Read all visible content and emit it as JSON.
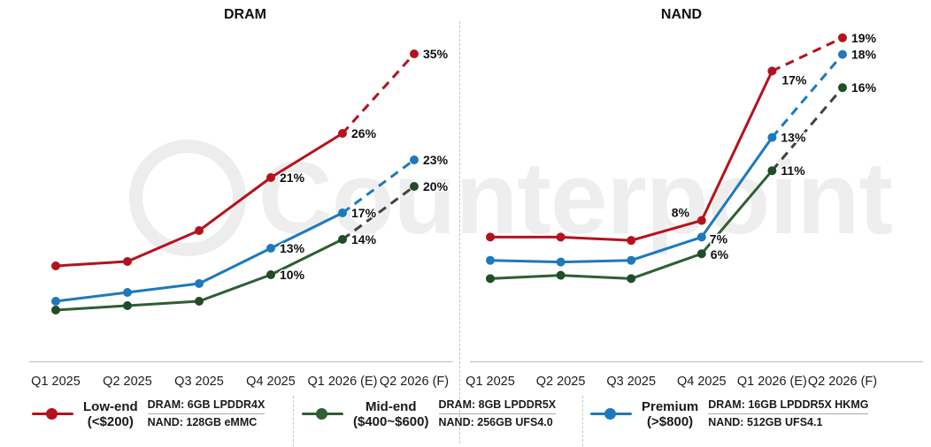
{
  "watermark": {
    "text": "Counterpoint"
  },
  "chart_data": [
    {
      "type": "line",
      "title": "DRAM",
      "unit": "percent",
      "categories": [
        "Q1 2025",
        "Q2 2025",
        "Q3 2025",
        "Q4 2025",
        "Q1 2026 (E)",
        "Q2 2026 (F)"
      ],
      "ylim": [
        0,
        38
      ],
      "grid": false,
      "legend_position": "bottom",
      "forecast_dashed_from_index": 4,
      "series": [
        {
          "name": "Mid-end ($400~$600)",
          "color": "#2e5f33",
          "marker_color": "#204c26",
          "forecast_color": "#3d443d",
          "values": [
            6,
            6.5,
            7,
            10,
            14,
            20
          ],
          "point_labels": [
            "",
            "",
            "",
            "10%",
            "14%",
            "20%"
          ]
        },
        {
          "name": "Premium (>$800)",
          "color": "#1d79bd",
          "marker_color": "#1d79bd",
          "forecast_color": "#1d79bd",
          "values": [
            7,
            8,
            9,
            13,
            17,
            23
          ],
          "point_labels": [
            "",
            "",
            "",
            "13%",
            "17%",
            "23%"
          ]
        },
        {
          "name": "Low-end (<$200)",
          "color": "#b5121d",
          "marker_color": "#b5121d",
          "forecast_color": "#b5121d",
          "values": [
            11,
            11.5,
            15,
            21,
            26,
            35
          ],
          "point_labels": [
            "",
            "",
            "",
            "21%",
            "26%",
            "35%"
          ]
        }
      ]
    },
    {
      "type": "line",
      "title": "NAND",
      "unit": "percent",
      "categories": [
        "Q1 2025",
        "Q2 2025",
        "Q3 2025",
        "Q4 2025",
        "Q1 2026 (E)",
        "Q2 2026 (F)"
      ],
      "ylim": [
        0,
        21
      ],
      "grid": false,
      "legend_position": "bottom",
      "forecast_dashed_from_index": 4,
      "series": [
        {
          "name": "Mid-end ($400~$600)",
          "color": "#2e5f33",
          "marker_color": "#204c26",
          "forecast_color": "#3d443d",
          "values": [
            4.5,
            4.7,
            4.5,
            6,
            11,
            16
          ],
          "point_labels": [
            "",
            "",
            "",
            "6%",
            "11%",
            "16%"
          ],
          "label_offsets": {
            "3": [
              10,
              6
            ]
          }
        },
        {
          "name": "Premium (>$800)",
          "color": "#1d79bd",
          "marker_color": "#1d79bd",
          "forecast_color": "#1d79bd",
          "values": [
            5.6,
            5.5,
            5.6,
            7,
            13,
            18
          ],
          "point_labels": [
            "",
            "",
            "",
            "7%",
            "13%",
            "18%"
          ],
          "label_offsets": {
            "3": [
              9,
              7
            ]
          }
        },
        {
          "name": "Low-end (<$200)",
          "color": "#b5121d",
          "marker_color": "#b5121d",
          "forecast_color": "#b5121d",
          "values": [
            7,
            7,
            6.8,
            8,
            17,
            19
          ],
          "point_labels": [
            "",
            "",
            "",
            "8%",
            "17%",
            "19%"
          ],
          "label_offsets": {
            "3": [
              -34,
              -4
            ],
            "4": [
              11,
              15
            ]
          }
        }
      ]
    }
  ],
  "legend": {
    "items": [
      {
        "name": "Low-end",
        "price_range": "(<$200)",
        "dram_spec": "DRAM: 6GB LPDDR4X",
        "nand_spec": "NAND: 128GB eMMC",
        "color": "#b5121d"
      },
      {
        "name": "Mid-end",
        "price_range": "($400~$600)",
        "dram_spec": "DRAM: 8GB LPDDR5X",
        "nand_spec": "NAND: 256GB UFS4.0",
        "color": "#2e5f33"
      },
      {
        "name": "Premium",
        "price_range": "(>$800)",
        "dram_spec": "DRAM: 16GB LPDDR5X HKMG",
        "nand_spec": "NAND: 512GB UFS4.1",
        "color": "#1d79bd"
      }
    ]
  }
}
